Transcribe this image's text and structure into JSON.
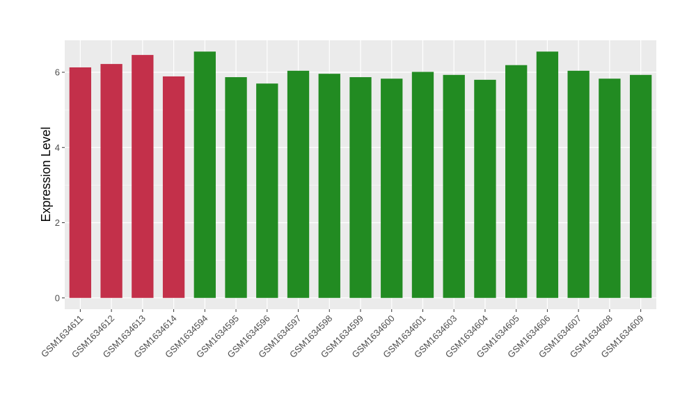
{
  "chart_data": {
    "type": "bar",
    "title": "",
    "xlabel": "",
    "ylabel": "Expression Level",
    "ylim": [
      -0.3,
      6.85
    ],
    "yticks": [
      0,
      2,
      4,
      6
    ],
    "grid": true,
    "legend": "none",
    "colors": {
      "group_a": "#c3304a",
      "group_b": "#228b22",
      "panel": "#ebebeb",
      "grid": "#ffffff"
    },
    "categories": [
      "GSM1634611",
      "GSM1634612",
      "GSM1634613",
      "GSM1634614",
      "GSM1634594",
      "GSM1634595",
      "GSM1634596",
      "GSM1634597",
      "GSM1634598",
      "GSM1634599",
      "GSM1634600",
      "GSM1634601",
      "GSM1634603",
      "GSM1634604",
      "GSM1634605",
      "GSM1634606",
      "GSM1634607",
      "GSM1634608",
      "GSM1634609"
    ],
    "values": [
      6.13,
      6.22,
      6.46,
      5.89,
      6.55,
      5.87,
      5.7,
      6.04,
      5.96,
      5.87,
      5.83,
      6.01,
      5.93,
      5.8,
      6.19,
      6.55,
      6.04,
      5.83,
      5.93
    ],
    "groups": [
      "a",
      "a",
      "a",
      "a",
      "b",
      "b",
      "b",
      "b",
      "b",
      "b",
      "b",
      "b",
      "b",
      "b",
      "b",
      "b",
      "b",
      "b",
      "b"
    ]
  }
}
